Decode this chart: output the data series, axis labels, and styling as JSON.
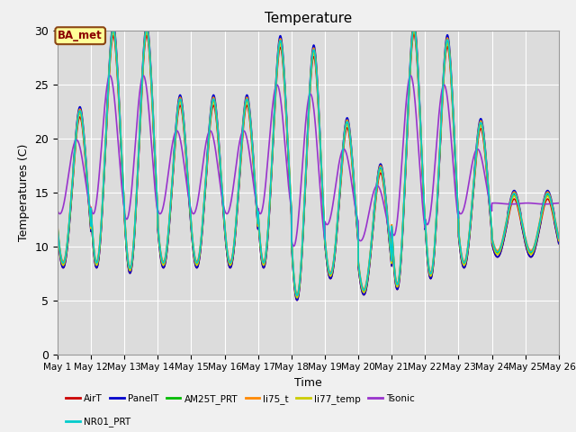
{
  "title": "Temperature",
  "xlabel": "Time",
  "ylabel": "Temperatures (C)",
  "ylim": [
    0,
    30
  ],
  "series": [
    {
      "name": "AirT",
      "color": "#CC0000",
      "lw": 1.2
    },
    {
      "name": "PanelT",
      "color": "#0000CC",
      "lw": 1.2
    },
    {
      "name": "AM25T_PRT",
      "color": "#00BB00",
      "lw": 1.2
    },
    {
      "name": "li75_t",
      "color": "#FF8800",
      "lw": 1.2
    },
    {
      "name": "li77_temp",
      "color": "#CCCC00",
      "lw": 1.2
    },
    {
      "name": "Tsonic",
      "color": "#9933CC",
      "lw": 1.2
    },
    {
      "name": "NR01_PRT",
      "color": "#00CCCC",
      "lw": 1.2
    }
  ],
  "annotation_text": "BA_met",
  "plot_bg_color": "#DCDCDC",
  "fig_bg_color": "#F0F0F0",
  "yticks": [
    0,
    5,
    10,
    15,
    20,
    25,
    30
  ],
  "x_tick_labels": [
    "May 1",
    "May 12",
    "May 13",
    "May 14",
    "May 15",
    "May 16",
    "May 17",
    "May 18",
    "May 19",
    "May 20",
    "May 21",
    "May 22",
    "May 23",
    "May 24",
    "May 25",
    "May 26"
  ],
  "legend_ncol_row1": 6,
  "legend_ncol_row2": 1
}
